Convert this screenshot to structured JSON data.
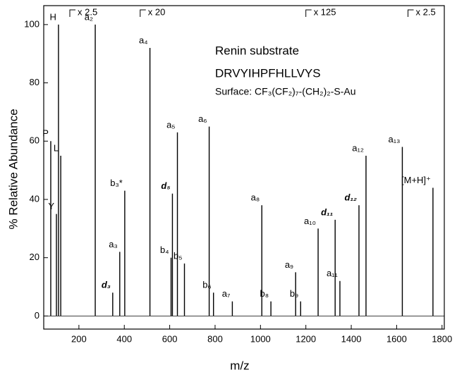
{
  "chart_data": {
    "type": "spectrum",
    "title": "Renin substrate",
    "subtitle": "DRVYIHPFHLLVYS",
    "note": "Surface: CF₃(CF₂)₇-(CH₂)₂-S-Au",
    "x_label": "m/z",
    "y_label": "% Relative Abundance",
    "x": [
      76,
      101,
      120,
      110,
      272,
      349,
      380,
      402,
      513,
      606,
      612,
      634,
      665,
      774,
      793,
      876,
      1006,
      1046,
      1155,
      1177,
      1254,
      1329,
      1350,
      1434,
      1465,
      1625,
      1760
    ],
    "values": [
      60,
      35,
      55,
      100,
      100,
      8,
      22,
      43,
      92,
      20,
      42,
      63,
      18,
      65,
      8,
      5,
      38,
      5,
      15,
      5,
      30,
      33,
      12,
      38,
      55,
      58,
      44
    ],
    "peak_labels": [
      "P",
      "Y",
      "L",
      "H",
      "a₂",
      "d₃",
      "a₃",
      "b₃*",
      "a₄",
      "b₄",
      "d₅",
      "a₅",
      "b₅",
      "a₆",
      "b₆",
      "a₇",
      "a₈",
      "b₈",
      "a₉",
      "b₉",
      "a₁₀",
      "d₁₁",
      "a₁₁",
      "d₁₂",
      "a₁₂",
      "a₁₃",
      "[M+H]⁺"
    ],
    "color": "#000000",
    "scale_marks": [
      {
        "x": 160,
        "label": "x 2.5"
      },
      {
        "x": 470,
        "label": "x 20"
      },
      {
        "x": 1200,
        "label": "x 125"
      },
      {
        "x": 1650,
        "label": "x 2.5"
      }
    ],
    "xlim": [
      45,
      1810
    ],
    "ylim": [
      -4.5,
      106.5
    ],
    "xticks": [
      200,
      400,
      600,
      800,
      1000,
      1200,
      1400,
      1600,
      1800
    ],
    "yticks": [
      0,
      20,
      40,
      60,
      80,
      100
    ]
  }
}
